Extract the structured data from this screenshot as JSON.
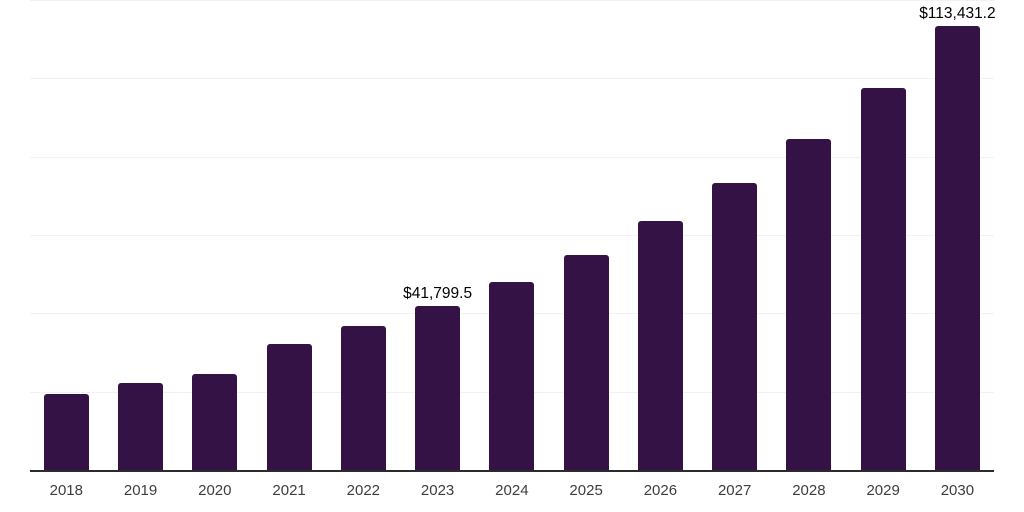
{
  "chart_data": {
    "type": "bar",
    "title": "",
    "xlabel": "",
    "ylabel": "",
    "categories": [
      "2018",
      "2019",
      "2020",
      "2021",
      "2022",
      "2023",
      "2024",
      "2025",
      "2026",
      "2027",
      "2028",
      "2029",
      "2030"
    ],
    "values": [
      19400,
      22200,
      24400,
      32200,
      36700,
      41799.5,
      48000,
      55000,
      63700,
      73400,
      84600,
      97600,
      113431.2
    ],
    "data_labels": [
      {
        "category": "2023",
        "text": "$41,799.5"
      },
      {
        "category": "2030",
        "text": "$113,431.2"
      }
    ],
    "ylim": [
      0,
      120000
    ],
    "grid_step": 20000,
    "grid": "horizontal",
    "legend_position": "none",
    "y_axis_labels_visible": false
  },
  "colors": {
    "bar": "#341246",
    "axis_line": "#2b2b2b",
    "gridline": "#f2f2f2",
    "tick_label": "#3d3d3d",
    "data_label": "#000000",
    "background": "#ffffff"
  }
}
